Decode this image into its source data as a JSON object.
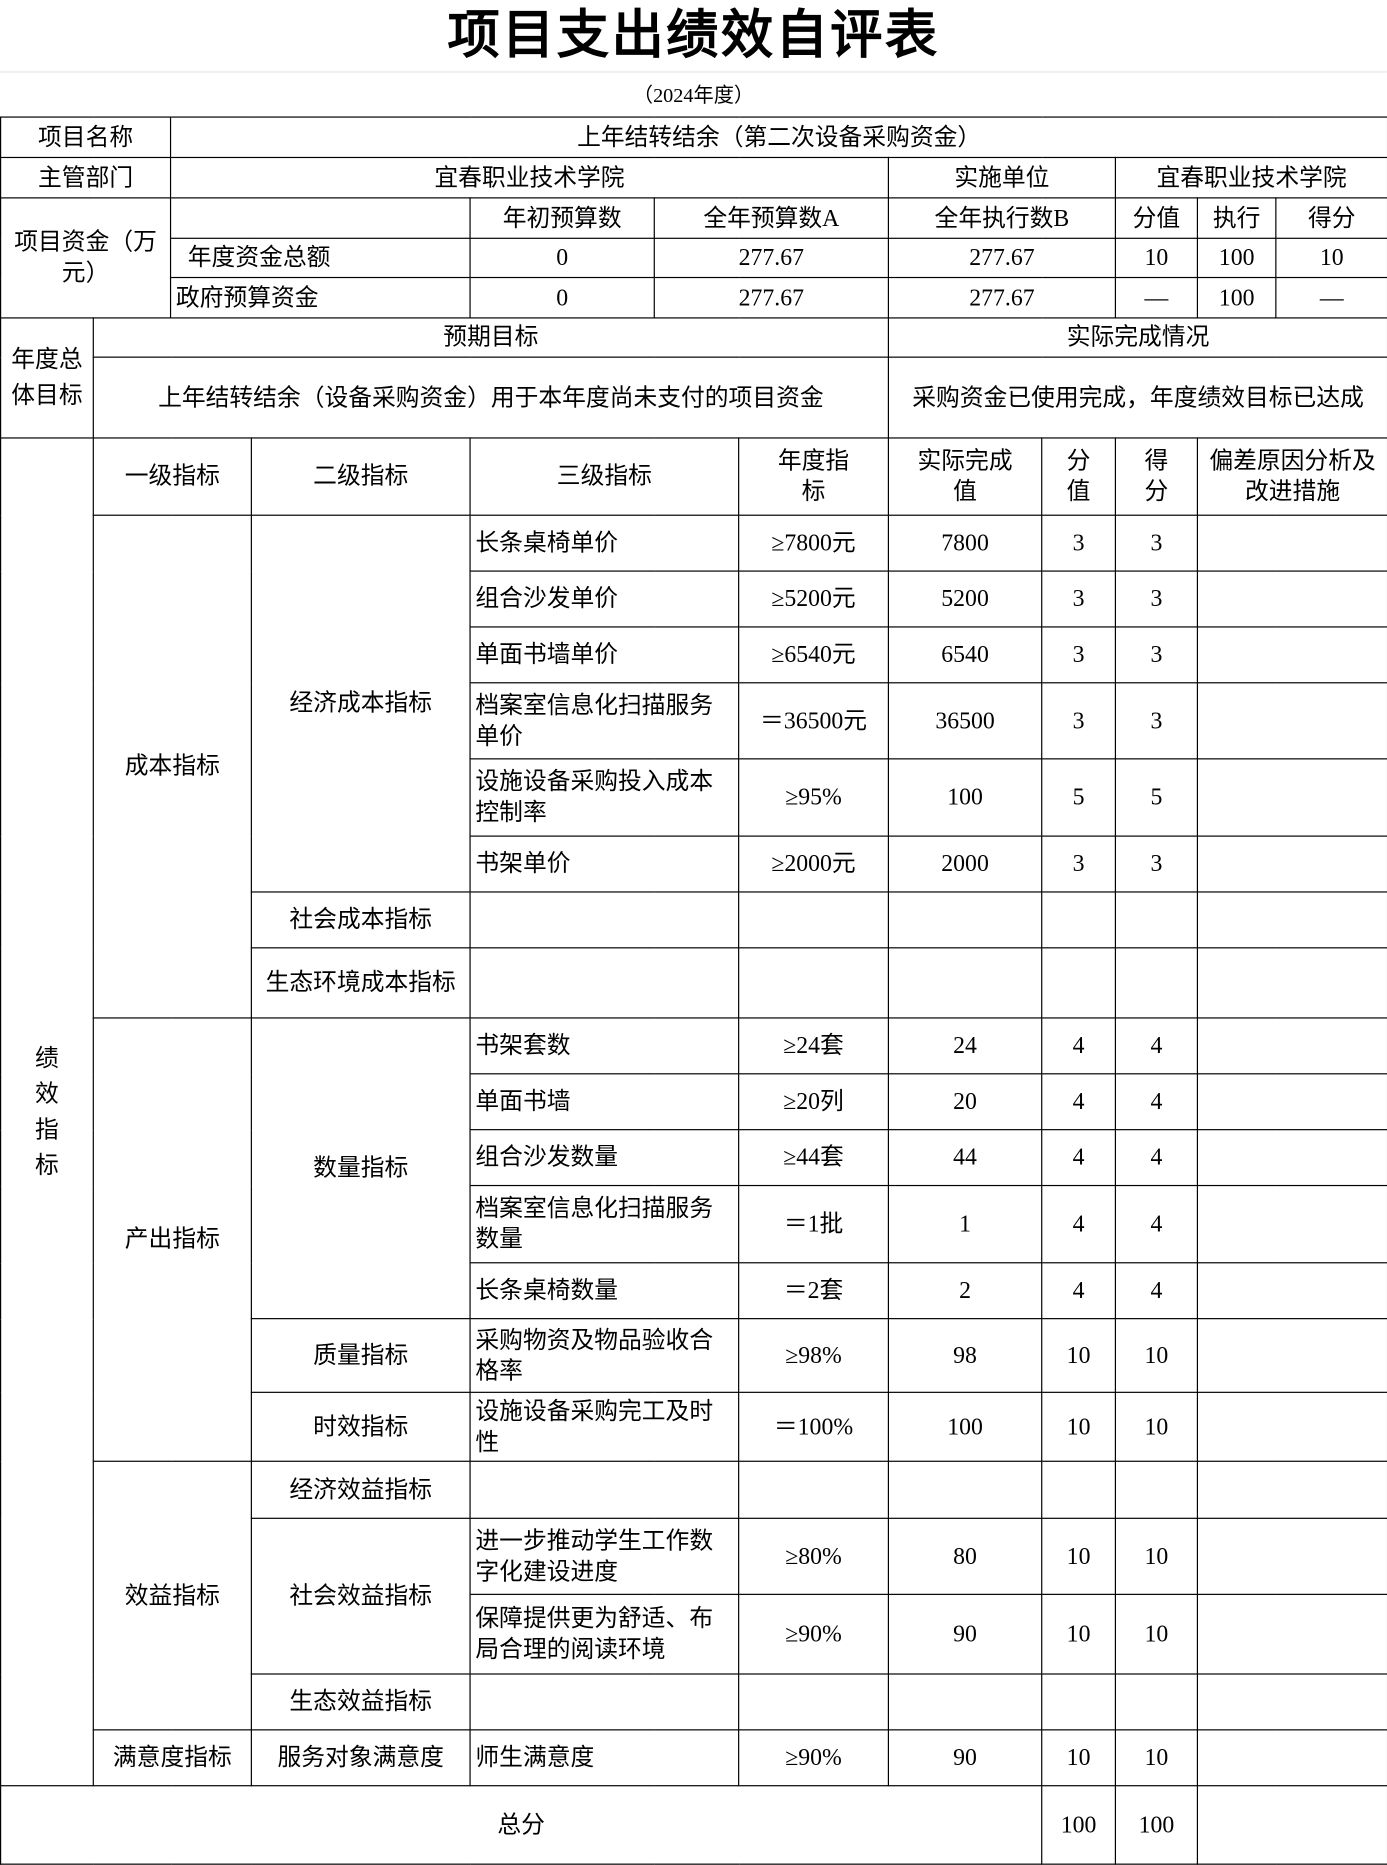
{
  "title": "项目支出绩效自评表",
  "year": "（2024年度）",
  "project": {
    "name_label": "项目名称",
    "name": "上年结转结余（第二次设备采购资金）",
    "dept_label": "主管部门",
    "dept": "宜春职业技术学院",
    "impl_label": "实施单位",
    "impl": "宜春职业技术学院"
  },
  "funds": {
    "label": "项目资金（万元）",
    "headers": [
      "年初预算数",
      "全年预算数A",
      "全年执行数B",
      "分值",
      "执行",
      "得分"
    ],
    "rows": [
      {
        "name": "年度资金总额",
        "init": "0",
        "budget": "277.67",
        "exec": "277.67",
        "score_val": "10",
        "rate": "100",
        "score": "10"
      },
      {
        "name": "政府预算资金",
        "init": "0",
        "budget": "277.67",
        "exec": "277.67",
        "score_val": "—",
        "rate": "100",
        "score": "—"
      }
    ]
  },
  "goal": {
    "label": "年度总体目标",
    "expected_label": "预期目标",
    "actual_label": "实际完成情况",
    "expected": "上年结转结余（设备采购资金）用于本年度尚未支付的项目资金",
    "actual": "采购资金已使用完成，年度绩效目标已达成"
  },
  "indicators": {
    "label": "绩效指标",
    "headers": [
      "一级指标",
      "二级指标",
      "三级指标",
      "年度指标",
      "实际完成值",
      "分值",
      "得分",
      "偏差原因分析及改进措施"
    ],
    "groups": [
      {
        "name": "成本指标",
        "subs": [
          {
            "name": "经济成本指标",
            "rows": [
              [
                "长条桌椅单价",
                "≥7800元",
                "7800",
                "3",
                "3"
              ],
              [
                "组合沙发单价",
                "≥5200元",
                "5200",
                "3",
                "3"
              ],
              [
                "单面书墙单价",
                "≥6540元",
                "6540",
                "3",
                "3"
              ],
              [
                "档案室信息化扫描服务单价",
                "＝36500元",
                "36500",
                "3",
                "3"
              ],
              [
                "设施设备采购投入成本控制率",
                "≥95%",
                "100",
                "5",
                "5"
              ],
              [
                "书架单价",
                "≥2000元",
                "2000",
                "3",
                "3"
              ]
            ]
          },
          {
            "name": "社会成本指标",
            "rows": [
              [
                "",
                "",
                "",
                "",
                ""
              ]
            ]
          },
          {
            "name": "生态环境成本指标",
            "rows": [
              [
                "",
                "",
                "",
                "",
                ""
              ]
            ]
          }
        ]
      },
      {
        "name": "产出指标",
        "subs": [
          {
            "name": "数量指标",
            "rows": [
              [
                "书架套数",
                "≥24套",
                "24",
                "4",
                "4"
              ],
              [
                "单面书墙",
                "≥20列",
                "20",
                "4",
                "4"
              ],
              [
                "组合沙发数量",
                "≥44套",
                "44",
                "4",
                "4"
              ],
              [
                "档案室信息化扫描服务数量",
                "＝1批",
                "1",
                "4",
                "4"
              ],
              [
                "长条桌椅数量",
                "＝2套",
                "2",
                "4",
                "4"
              ]
            ]
          },
          {
            "name": "质量指标",
            "rows": [
              [
                "采购物资及物品验收合格率",
                "≥98%",
                "98",
                "10",
                "10"
              ]
            ]
          },
          {
            "name": "时效指标",
            "rows": [
              [
                "设施设备采购完工及时性",
                "＝100%",
                "100",
                "10",
                "10"
              ]
            ]
          }
        ]
      },
      {
        "name": "效益指标",
        "subs": [
          {
            "name": "经济效益指标",
            "rows": [
              [
                "",
                "",
                "",
                "",
                ""
              ]
            ]
          },
          {
            "name": "社会效益指标",
            "rows": [
              [
                "进一步推动学生工作数字化建设进度",
                "≥80%",
                "80",
                "10",
                "10"
              ],
              [
                "保障提供更为舒适、布局合理的阅读环境",
                "≥90%",
                "90",
                "10",
                "10"
              ]
            ]
          },
          {
            "name": "生态效益指标",
            "rows": [
              [
                "",
                "",
                "",
                "",
                ""
              ]
            ]
          }
        ]
      },
      {
        "name": "满意度指标",
        "subs": [
          {
            "name": "服务对象满意度",
            "rows": [
              [
                "师生满意度",
                "≥90%",
                "90",
                "10",
                "10"
              ]
            ]
          }
        ]
      }
    ]
  },
  "total": {
    "label": "总分",
    "score_val": "100",
    "score": "100"
  }
}
